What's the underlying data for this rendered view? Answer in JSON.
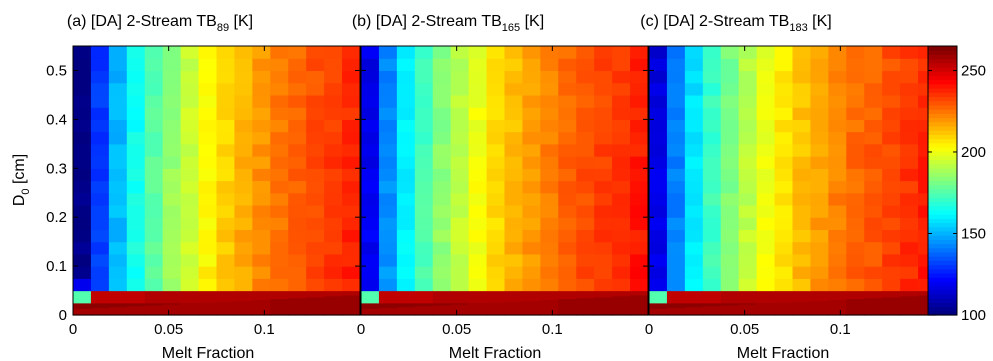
{
  "chart_data": {
    "type": "heatmap",
    "panels": [
      {
        "title": "(a) [DA] 2-Stream TB",
        "title_subscript": "89",
        "title_suffix": " [K]",
        "xlabel": "Melt Fraction",
        "ylabel": "D",
        "ylabel_subscript": "0",
        "ylabel_suffix": " [cm]",
        "xlim": [
          0,
          0.15
        ],
        "ylim": [
          0,
          0.55
        ],
        "xticks": [
          0,
          0.05,
          0.1
        ],
        "xtick_labels": [
          "0",
          "0.05",
          "0.1"
        ],
        "yticks": [
          0,
          0.1,
          0.2,
          0.3,
          0.4,
          0.5
        ],
        "ytick_labels": [
          "0",
          "0.1",
          "0.2",
          "0.3",
          "0.4",
          "0.5"
        ],
        "base_profile": [
          102,
          132,
          152,
          166,
          178,
          188,
          197,
          205,
          212,
          218,
          223,
          227,
          231,
          234,
          237,
          240
        ],
        "noise_seed": 3
      },
      {
        "title": "(b) [DA] 2-Stream TB",
        "title_subscript": "165",
        "title_suffix": " [K]",
        "xlabel": "Melt Fraction",
        "xlim": [
          0,
          0.15
        ],
        "ylim": [
          0,
          0.55
        ],
        "xticks": [
          0,
          0.05,
          0.1
        ],
        "xtick_labels": [
          "0",
          "0.05",
          "0.1"
        ],
        "base_profile": [
          120,
          145,
          162,
          175,
          186,
          195,
          203,
          210,
          216,
          221,
          226,
          230,
          233,
          236,
          239,
          242
        ],
        "noise_seed": 7
      },
      {
        "title": "(c) [DA] 2-Stream TB",
        "title_subscript": "183",
        "title_suffix": " [K]",
        "xlabel": "Melt Fraction",
        "xlim": [
          0,
          0.15
        ],
        "ylim": [
          0,
          0.55
        ],
        "xticks": [
          0,
          0.05,
          0.1
        ],
        "xtick_labels": [
          "0",
          "0.05",
          "0.1"
        ],
        "base_profile": [
          118,
          143,
          160,
          173,
          184,
          194,
          202,
          209,
          215,
          220,
          225,
          229,
          232,
          235,
          238,
          241
        ],
        "noise_seed": 11
      }
    ],
    "colorbar": {
      "colormap": "jet",
      "range": [
        100,
        265
      ],
      "ticks": [
        100,
        150,
        200,
        250
      ],
      "tick_labels": [
        "100",
        "150",
        "200",
        "250"
      ]
    },
    "grid": {
      "n_x_bins": 16,
      "n_y_bins": 22,
      "bottom_hot_value": 263
    }
  }
}
